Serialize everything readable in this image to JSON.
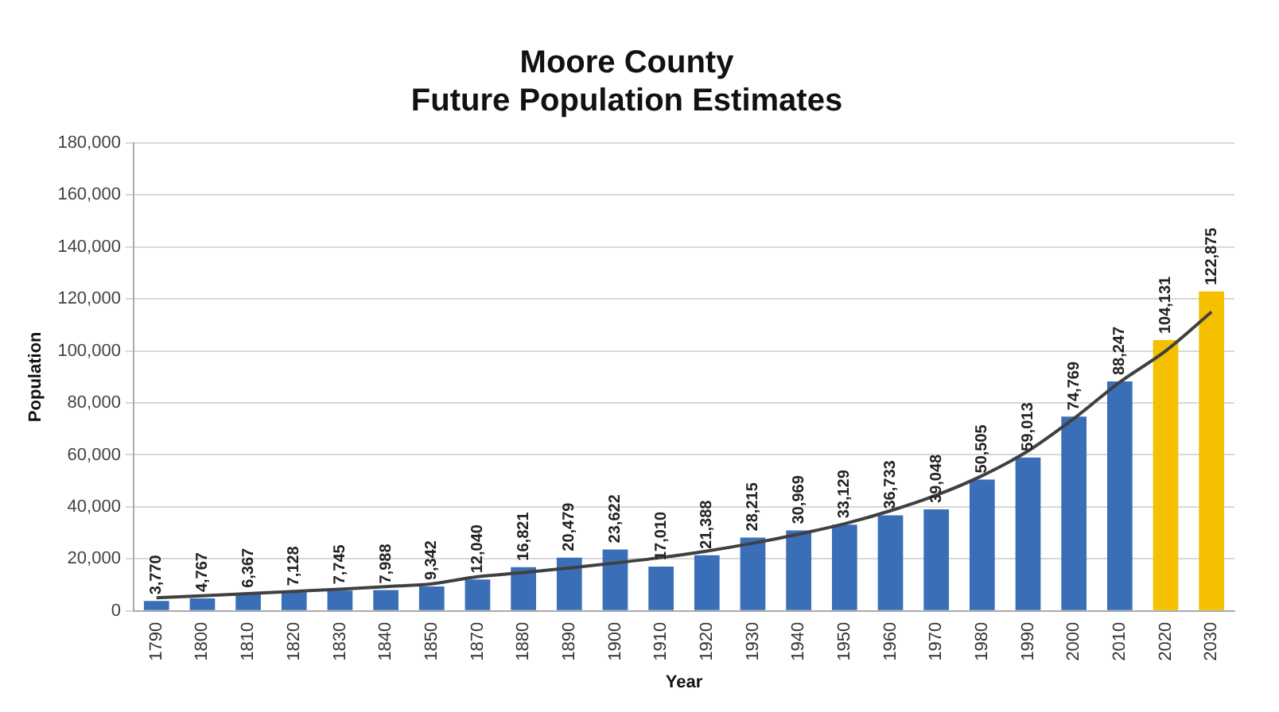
{
  "chart_data": {
    "type": "bar",
    "title": "Moore County\nFuture Population Estimates",
    "xlabel": "Year",
    "ylabel": "Population",
    "categories": [
      "1790",
      "1800",
      "1810",
      "1820",
      "1830",
      "1840",
      "1850",
      "1870",
      "1880",
      "1890",
      "1900",
      "1910",
      "1920",
      "1930",
      "1940",
      "1950",
      "1960",
      "1970",
      "1980",
      "1990",
      "2000",
      "2010",
      "2020",
      "2030"
    ],
    "series": [
      {
        "colors": [
          "#3a6fb8",
          "#3a6fb8",
          "#3a6fb8",
          "#3a6fb8",
          "#3a6fb8",
          "#3a6fb8",
          "#3a6fb8",
          "#3a6fb8",
          "#3a6fb8",
          "#3a6fb8",
          "#3a6fb8",
          "#3a6fb8",
          "#3a6fb8",
          "#3a6fb8",
          "#3a6fb8",
          "#3a6fb8",
          "#3a6fb8",
          "#3a6fb8",
          "#3a6fb8",
          "#3a6fb8",
          "#3a6fb8",
          "#3a6fb8",
          "#f5c000",
          "#f5c000"
        ],
        "values": [
          3770,
          4767,
          6367,
          7128,
          7745,
          7988,
          9342,
          12040,
          16821,
          20479,
          23622,
          17010,
          21388,
          28215,
          30969,
          33129,
          36733,
          39048,
          50505,
          59013,
          74769,
          88247,
          104131,
          122875
        ],
        "value_labels": [
          "3,770",
          "4,767",
          "6,367",
          "7,128",
          "7,745",
          "7,988",
          "9,342",
          "12,040",
          "16,821",
          "20,479",
          "23,622",
          "17,010",
          "21,388",
          "28,215",
          "30,969",
          "33,129",
          "36,733",
          "39,048",
          "50,505",
          "59,013",
          "74,769",
          "88,247",
          "104,131",
          "122,875"
        ]
      },
      {
        "type": "line",
        "color": "#404040",
        "values": [
          5000,
          5800,
          6600,
          7500,
          8300,
          9300,
          10400,
          13100,
          14700,
          16500,
          18400,
          20500,
          23000,
          26000,
          29500,
          33500,
          38500,
          44500,
          52000,
          61500,
          74000,
          88000,
          100000,
          115000
        ]
      }
    ],
    "ylim": [
      0,
      180000
    ],
    "yticks": [
      {
        "value": 0,
        "label": "0"
      },
      {
        "value": 20000,
        "label": "20,000"
      },
      {
        "value": 40000,
        "label": "40,000"
      },
      {
        "value": 60000,
        "label": "60,000"
      },
      {
        "value": 80000,
        "label": "80,000"
      },
      {
        "value": 100000,
        "label": "100,000"
      },
      {
        "value": 120000,
        "label": "120,000"
      },
      {
        "value": 140000,
        "label": "140,000"
      },
      {
        "value": 160000,
        "label": "160,000"
      },
      {
        "value": 180000,
        "label": "180,000"
      }
    ],
    "grid": "y",
    "legend": false,
    "marker": "none"
  }
}
